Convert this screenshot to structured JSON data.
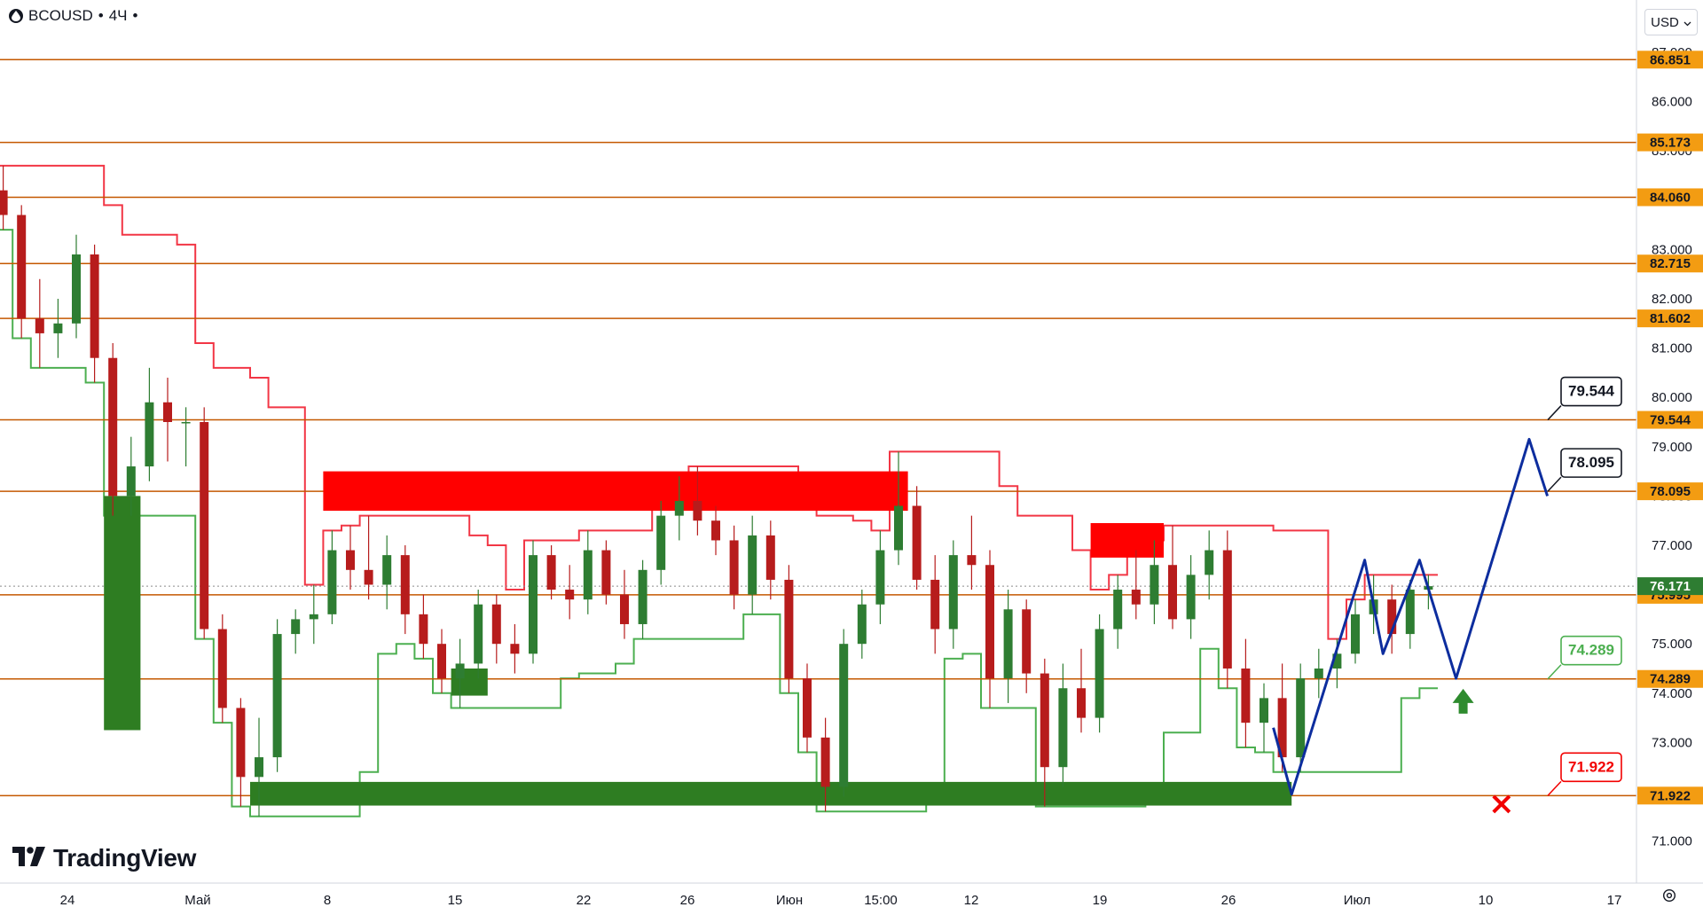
{
  "header": {
    "symbol": "BCOUSD",
    "separator": "•",
    "interval": "4Ч",
    "more": "•"
  },
  "currency": {
    "label": "USD",
    "top_clip": "USD"
  },
  "branding": {
    "name": "TradingView"
  },
  "colors": {
    "level_line": "#c45800",
    "level_badge": "#f39c12",
    "bull_candle": "#2e7d32",
    "bear_candle": "#b71c1c",
    "resistance_zone": "#ff0000",
    "support_zone": "#2e7d22",
    "upper_band": "#f23645",
    "lower_band": "#4caf50",
    "forecast": "#0d2d9e",
    "target_arrow": "#2e8b2e",
    "stop_mark": "#f20000"
  },
  "chart_data": {
    "type": "candlestick",
    "title": "",
    "symbol": "BCOUSD",
    "interval": "4Ч",
    "y_axis": {
      "range": [
        70.5,
        87.5
      ],
      "ticks": [
        "71.000",
        "72.000",
        "73.000",
        "74.000",
        "75.000",
        "76.000",
        "77.000",
        "78.000",
        "79.000",
        "80.000",
        "81.000",
        "82.000",
        "83.000",
        "84.000",
        "85.000",
        "86.000",
        "87.000"
      ]
    },
    "x_axis": {
      "tick_labels": [
        "24",
        "Май",
        "8",
        "15",
        "22",
        "26",
        "Июн",
        "15:00",
        "12",
        "19",
        "26",
        "Июл",
        "10",
        "17"
      ]
    },
    "horizontal_levels": [
      86.851,
      85.173,
      84.06,
      82.715,
      81.602,
      79.544,
      78.095,
      75.995,
      74.289,
      71.922
    ],
    "level_labels": [
      "86.851",
      "85.173",
      "84.060",
      "82.715",
      "81.602",
      "79.544",
      "78.095",
      "75.995",
      "74.289",
      "71.922"
    ],
    "current_price": {
      "value": 76.171,
      "label": "76.171"
    },
    "callouts": [
      {
        "label": "79.544",
        "value": 79.544,
        "kind": "target"
      },
      {
        "label": "78.095",
        "value": 78.095,
        "kind": "target"
      },
      {
        "label": "74.289",
        "value": 74.289,
        "kind": "support"
      },
      {
        "label": "71.922",
        "value": 71.922,
        "kind": "stop"
      }
    ],
    "resistance_zones": [
      {
        "from_date": "2023-05-08",
        "to_date": "2023-06-09",
        "low": 77.7,
        "high": 78.5
      },
      {
        "from_date": "2023-06-19",
        "to_date": "2023-06-23",
        "low": 76.75,
        "high": 77.45
      }
    ],
    "support_zones": [
      {
        "from_date": "2023-04-26",
        "to_date": "2023-04-28",
        "low": 73.25,
        "high": 78.0
      },
      {
        "from_date": "2023-05-15",
        "to_date": "2023-05-17",
        "low": 73.95,
        "high": 74.5
      },
      {
        "from_date": "2023-05-04",
        "to_date": "2023-06-30",
        "low": 71.72,
        "high": 72.2
      }
    ],
    "forecast_path": [
      {
        "date": "2023-06-29",
        "price": 73.3
      },
      {
        "date": "2023-06-30",
        "price": 71.95
      },
      {
        "date": "2023-07-04",
        "price": 76.7
      },
      {
        "date": "2023-07-05",
        "price": 74.8
      },
      {
        "date": "2023-07-07",
        "price": 76.7
      },
      {
        "date": "2023-07-09",
        "price": 74.3
      },
      {
        "date": "2023-07-13",
        "price": 79.15
      },
      {
        "date": "2023-07-14",
        "price": 78.0
      }
    ],
    "candles": [
      {
        "date": "2023-04-20",
        "open": 84.2,
        "high": 84.7,
        "low": 83.4,
        "close": 83.7
      },
      {
        "date": "2023-04-21",
        "open": 83.7,
        "high": 83.9,
        "low": 81.2,
        "close": 81.6
      },
      {
        "date": "2023-04-22",
        "open": 81.6,
        "high": 82.4,
        "low": 80.6,
        "close": 81.3
      },
      {
        "date": "2023-04-23",
        "open": 81.3,
        "high": 82.0,
        "low": 80.8,
        "close": 81.5
      },
      {
        "date": "2023-04-24",
        "open": 81.5,
        "high": 83.3,
        "low": 81.2,
        "close": 82.9
      },
      {
        "date": "2023-04-25",
        "open": 82.9,
        "high": 83.1,
        "low": 80.3,
        "close": 80.8
      },
      {
        "date": "2023-04-26",
        "open": 80.8,
        "high": 81.1,
        "low": 77.6,
        "close": 78.0
      },
      {
        "date": "2023-04-27",
        "open": 78.0,
        "high": 79.2,
        "low": 77.6,
        "close": 78.6
      },
      {
        "date": "2023-04-28",
        "open": 78.6,
        "high": 80.6,
        "low": 78.3,
        "close": 79.9
      },
      {
        "date": "2023-04-29",
        "open": 79.9,
        "high": 80.4,
        "low": 78.7,
        "close": 79.5
      },
      {
        "date": "2023-04-30",
        "open": 79.5,
        "high": 79.8,
        "low": 78.6,
        "close": 79.5
      },
      {
        "date": "2023-05-01",
        "open": 79.5,
        "high": 79.8,
        "low": 75.1,
        "close": 75.3
      },
      {
        "date": "2023-05-02",
        "open": 75.3,
        "high": 75.6,
        "low": 73.4,
        "close": 73.7
      },
      {
        "date": "2023-05-03",
        "open": 73.7,
        "high": 73.9,
        "low": 71.7,
        "close": 72.3
      },
      {
        "date": "2023-05-04",
        "open": 72.3,
        "high": 73.5,
        "low": 71.5,
        "close": 72.7
      },
      {
        "date": "2023-05-05",
        "open": 72.7,
        "high": 75.5,
        "low": 72.4,
        "close": 75.2
      },
      {
        "date": "2023-05-06",
        "open": 75.2,
        "high": 75.7,
        "low": 74.8,
        "close": 75.5
      },
      {
        "date": "2023-05-07",
        "open": 75.5,
        "high": 76.2,
        "low": 75.0,
        "close": 75.6
      },
      {
        "date": "2023-05-08",
        "open": 75.6,
        "high": 77.3,
        "low": 75.4,
        "close": 76.9
      },
      {
        "date": "2023-05-09",
        "open": 76.9,
        "high": 77.4,
        "low": 76.1,
        "close": 76.5
      },
      {
        "date": "2023-05-10",
        "open": 76.5,
        "high": 77.6,
        "low": 75.9,
        "close": 76.2
      },
      {
        "date": "2023-05-11",
        "open": 76.2,
        "high": 77.2,
        "low": 75.7,
        "close": 76.8
      },
      {
        "date": "2023-05-12",
        "open": 76.8,
        "high": 77.0,
        "low": 75.2,
        "close": 75.6
      },
      {
        "date": "2023-05-13",
        "open": 75.6,
        "high": 76.0,
        "low": 74.7,
        "close": 75.0
      },
      {
        "date": "2023-05-14",
        "open": 75.0,
        "high": 75.3,
        "low": 74.0,
        "close": 74.3
      },
      {
        "date": "2023-05-15",
        "open": 74.3,
        "high": 75.1,
        "low": 73.7,
        "close": 74.6
      },
      {
        "date": "2023-05-16",
        "open": 74.6,
        "high": 76.1,
        "low": 74.3,
        "close": 75.8
      },
      {
        "date": "2023-05-17",
        "open": 75.8,
        "high": 76.0,
        "low": 74.6,
        "close": 75.0
      },
      {
        "date": "2023-05-18",
        "open": 75.0,
        "high": 75.4,
        "low": 74.4,
        "close": 74.8
      },
      {
        "date": "2023-05-19",
        "open": 74.8,
        "high": 77.1,
        "low": 74.6,
        "close": 76.8
      },
      {
        "date": "2023-05-20",
        "open": 76.8,
        "high": 77.0,
        "low": 75.9,
        "close": 76.1
      },
      {
        "date": "2023-05-21",
        "open": 76.1,
        "high": 76.6,
        "low": 75.5,
        "close": 75.9
      },
      {
        "date": "2023-05-22",
        "open": 75.9,
        "high": 77.3,
        "low": 75.6,
        "close": 76.9
      },
      {
        "date": "2023-05-23",
        "open": 76.9,
        "high": 77.1,
        "low": 75.8,
        "close": 76.0
      },
      {
        "date": "2023-05-24",
        "open": 76.0,
        "high": 76.5,
        "low": 75.1,
        "close": 75.4
      },
      {
        "date": "2023-05-25",
        "open": 75.4,
        "high": 76.7,
        "low": 75.1,
        "close": 76.5
      },
      {
        "date": "2023-05-26",
        "open": 76.5,
        "high": 77.9,
        "low": 76.2,
        "close": 77.6
      },
      {
        "date": "2023-05-27",
        "open": 77.6,
        "high": 78.4,
        "low": 77.1,
        "close": 77.9
      },
      {
        "date": "2023-05-28",
        "open": 77.9,
        "high": 78.6,
        "low": 77.2,
        "close": 77.5
      },
      {
        "date": "2023-05-29",
        "open": 77.5,
        "high": 77.8,
        "low": 76.8,
        "close": 77.1
      },
      {
        "date": "2023-05-30",
        "open": 77.1,
        "high": 77.4,
        "low": 75.7,
        "close": 76.0
      },
      {
        "date": "2023-05-31",
        "open": 76.0,
        "high": 77.6,
        "low": 75.6,
        "close": 77.2
      },
      {
        "date": "2023-06-01",
        "open": 77.2,
        "high": 77.5,
        "low": 75.9,
        "close": 76.3
      },
      {
        "date": "2023-06-02",
        "open": 76.3,
        "high": 76.6,
        "low": 74.0,
        "close": 74.3
      },
      {
        "date": "2023-06-03",
        "open": 74.3,
        "high": 74.6,
        "low": 72.8,
        "close": 73.1
      },
      {
        "date": "2023-06-04",
        "open": 73.1,
        "high": 73.5,
        "low": 71.6,
        "close": 72.1
      },
      {
        "date": "2023-06-05",
        "open": 72.1,
        "high": 75.3,
        "low": 71.9,
        "close": 75.0
      },
      {
        "date": "2023-06-06",
        "open": 75.0,
        "high": 76.1,
        "low": 74.7,
        "close": 75.8
      },
      {
        "date": "2023-06-07",
        "open": 75.8,
        "high": 77.3,
        "low": 75.4,
        "close": 76.9
      },
      {
        "date": "2023-06-08",
        "open": 76.9,
        "high": 78.9,
        "low": 76.6,
        "close": 77.8
      },
      {
        "date": "2023-06-09",
        "open": 77.8,
        "high": 78.2,
        "low": 76.1,
        "close": 76.3
      },
      {
        "date": "2023-06-10",
        "open": 76.3,
        "high": 76.8,
        "low": 74.8,
        "close": 75.3
      },
      {
        "date": "2023-06-11",
        "open": 75.3,
        "high": 77.1,
        "low": 74.9,
        "close": 76.8
      },
      {
        "date": "2023-06-12",
        "open": 76.8,
        "high": 77.6,
        "low": 76.1,
        "close": 76.6
      },
      {
        "date": "2023-06-13",
        "open": 76.6,
        "high": 76.9,
        "low": 73.7,
        "close": 74.3
      },
      {
        "date": "2023-06-14",
        "open": 74.3,
        "high": 76.1,
        "low": 73.8,
        "close": 75.7
      },
      {
        "date": "2023-06-15",
        "open": 75.7,
        "high": 75.9,
        "low": 74.0,
        "close": 74.4
      },
      {
        "date": "2023-06-16",
        "open": 74.4,
        "high": 74.7,
        "low": 71.7,
        "close": 72.5
      },
      {
        "date": "2023-06-17",
        "open": 72.5,
        "high": 74.6,
        "low": 72.1,
        "close": 74.1
      },
      {
        "date": "2023-06-18",
        "open": 74.1,
        "high": 74.9,
        "low": 73.2,
        "close": 73.5
      },
      {
        "date": "2023-06-19",
        "open": 73.5,
        "high": 75.6,
        "low": 73.2,
        "close": 75.3
      },
      {
        "date": "2023-06-20",
        "open": 75.3,
        "high": 76.4,
        "low": 74.9,
        "close": 76.1
      },
      {
        "date": "2023-06-21",
        "open": 76.1,
        "high": 76.9,
        "low": 75.5,
        "close": 75.8
      },
      {
        "date": "2023-06-22",
        "open": 75.8,
        "high": 77.1,
        "low": 75.4,
        "close": 76.6
      },
      {
        "date": "2023-06-23",
        "open": 76.6,
        "high": 77.4,
        "low": 75.3,
        "close": 75.5
      },
      {
        "date": "2023-06-24",
        "open": 75.5,
        "high": 76.8,
        "low": 75.1,
        "close": 76.4
      },
      {
        "date": "2023-06-25",
        "open": 76.4,
        "high": 77.3,
        "low": 75.9,
        "close": 76.9
      },
      {
        "date": "2023-06-26",
        "open": 76.9,
        "high": 77.3,
        "low": 74.1,
        "close": 74.5
      },
      {
        "date": "2023-06-27",
        "open": 74.5,
        "high": 75.1,
        "low": 72.9,
        "close": 73.4
      },
      {
        "date": "2023-06-28",
        "open": 73.4,
        "high": 74.2,
        "low": 72.8,
        "close": 73.9
      },
      {
        "date": "2023-06-29",
        "open": 73.9,
        "high": 74.6,
        "low": 72.4,
        "close": 72.7
      },
      {
        "date": "2023-06-30",
        "open": 72.7,
        "high": 74.6,
        "low": 72.4,
        "close": 74.3
      },
      {
        "date": "2023-07-01",
        "open": 74.3,
        "high": 74.9,
        "low": 73.9,
        "close": 74.5
      },
      {
        "date": "2023-07-02",
        "open": 74.5,
        "high": 75.1,
        "low": 74.1,
        "close": 74.8
      },
      {
        "date": "2023-07-03",
        "open": 74.8,
        "high": 75.9,
        "low": 74.6,
        "close": 75.6
      },
      {
        "date": "2023-07-04",
        "open": 75.6,
        "high": 76.4,
        "low": 75.2,
        "close": 75.9
      },
      {
        "date": "2023-07-05",
        "open": 75.9,
        "high": 76.2,
        "low": 74.8,
        "close": 75.2
      },
      {
        "date": "2023-07-06",
        "open": 75.2,
        "high": 76.3,
        "low": 74.9,
        "close": 76.1
      },
      {
        "date": "2023-07-07",
        "open": 76.1,
        "high": 76.4,
        "low": 75.7,
        "close": 76.17
      }
    ]
  }
}
